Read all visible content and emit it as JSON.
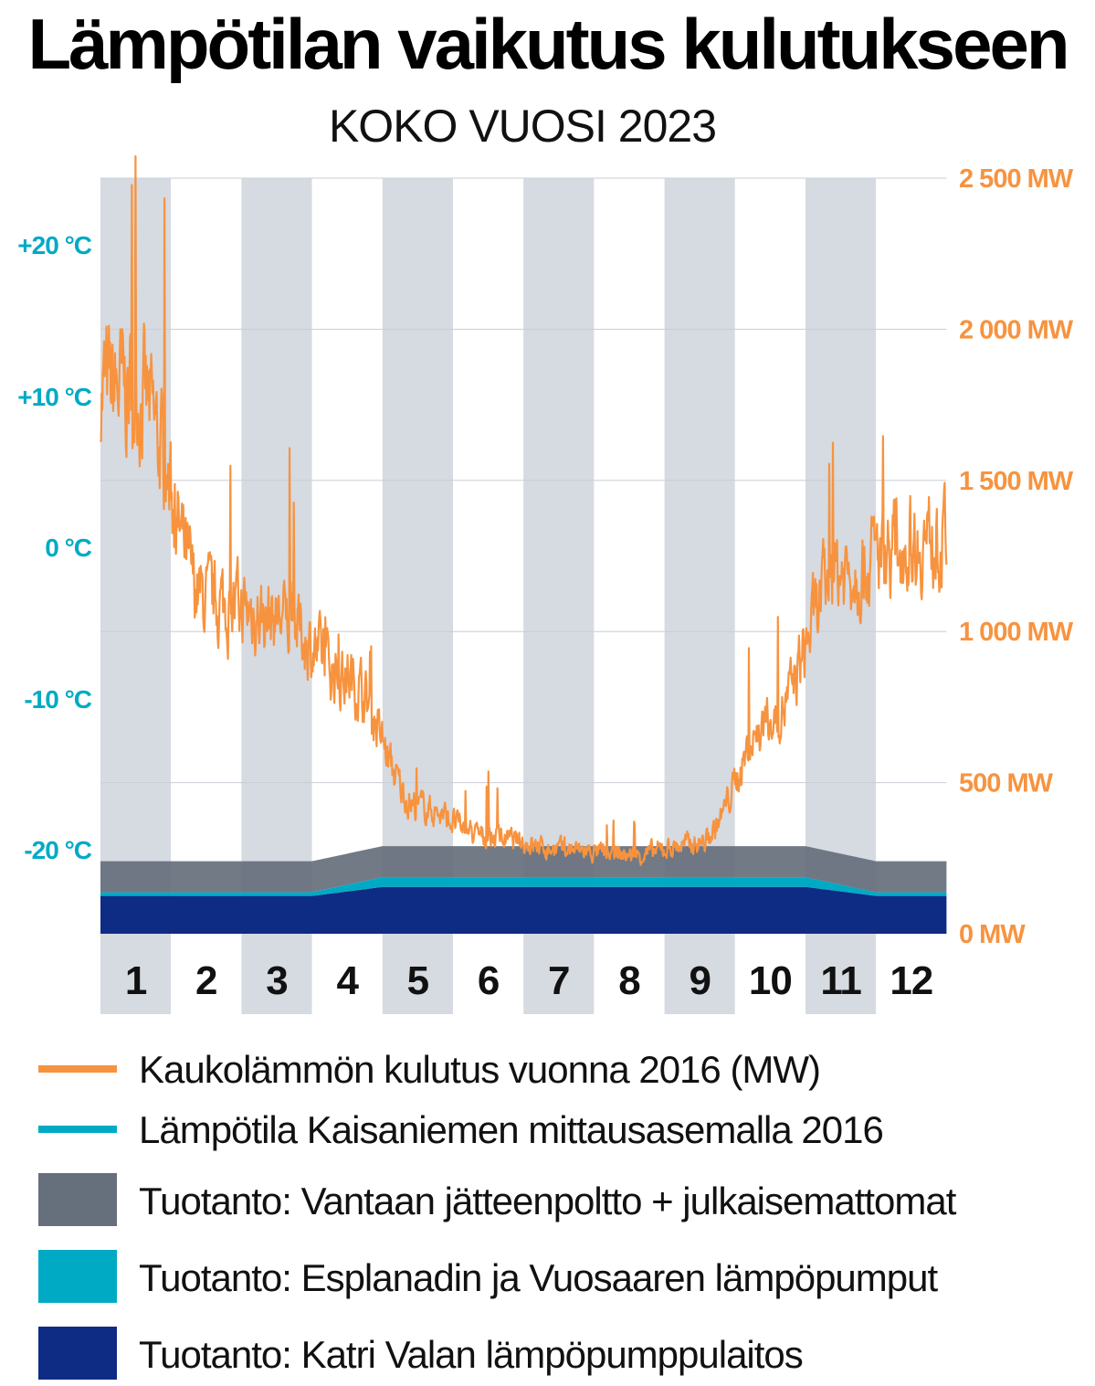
{
  "title": "Lämpötilan vaikutus kulutukseen",
  "subtitle": "KOKO VUOSI 2023",
  "chart_data": {
    "type": "area",
    "months": [
      "1",
      "2",
      "3",
      "4",
      "5",
      "6",
      "7",
      "8",
      "9",
      "10",
      "11",
      "12"
    ],
    "y_left": {
      "unit": "°C",
      "ticks": [
        "+20 °C",
        "+10 °C",
        "0 °C",
        "-10 °C",
        "-20 °C"
      ],
      "tick_values": [
        20,
        10,
        0,
        -10,
        -20
      ],
      "color": "#00aac5"
    },
    "y_right": {
      "unit": "MW",
      "ticks": [
        "2 500 MW",
        "2 000 MW",
        "1 500 MW",
        "1 000 MW",
        "500 MW",
        "0 MW"
      ],
      "tick_values": [
        2500,
        2000,
        1500,
        1000,
        500,
        0
      ],
      "ylim": [
        0,
        2500
      ],
      "color": "#f7933f"
    },
    "consumption_mw": {
      "name": "Kaukolämmön kulutus vuonna 2016 (MW)",
      "color": "#f7933f",
      "month_mid": [
        0.5,
        1.5,
        2.5,
        3.5,
        4.5,
        5.5,
        6.5,
        7.5,
        8.5,
        9.5,
        10.5,
        11.5
      ],
      "values": [
        1800,
        1100,
        1050,
        850,
        420,
        320,
        280,
        260,
        300,
        700,
        1200,
        1300
      ],
      "peaks": [
        2600,
        1550,
        1650,
        1050,
        550,
        540,
        330,
        380,
        470,
        1080,
        1800,
        1770
      ]
    },
    "production_stacks": [
      {
        "name": "Tuotanto: Katri Valan lämpöpumppulaitos",
        "color": "#0f2c84",
        "knots_month": [
          0,
          3,
          4,
          10,
          11,
          12
        ],
        "values_mw": [
          125,
          125,
          155,
          155,
          125,
          125
        ]
      },
      {
        "name": "Tuotanto: Esplanadin ja Vuosaaren lämpöpumput",
        "color": "#00aac5",
        "knots_month": [
          0,
          3,
          4,
          10,
          11,
          12
        ],
        "values_mw": [
          12,
          12,
          32,
          32,
          12,
          12
        ]
      },
      {
        "name": "Tuotanto: Vantaan jätteenpoltto + julkaisemattomat",
        "color": "#666f7c",
        "knots_month": [
          0,
          3,
          4,
          10,
          11,
          12
        ],
        "values_mw": [
          103,
          103,
          103,
          103,
          103,
          103
        ]
      }
    ]
  },
  "legend": [
    {
      "label": "Kaukolämmön kulutus vuonna 2016 (MW)",
      "color": "#f7933f",
      "style": "line"
    },
    {
      "label": "Lämpötila Kaisaniemen mittausasemalla 2016",
      "color": "#00aac5",
      "style": "line"
    },
    {
      "label": "Tuotanto: Vantaan jätteenpoltto + julkaisemattomat",
      "color": "#666f7c",
      "style": "box"
    },
    {
      "label": "Tuotanto: Esplanadin ja Vuosaaren lämpöpumput",
      "color": "#00aac5",
      "style": "box"
    },
    {
      "label": "Tuotanto: Katri Valan lämpöpumppulaitos",
      "color": "#0f2c84",
      "style": "box"
    }
  ]
}
